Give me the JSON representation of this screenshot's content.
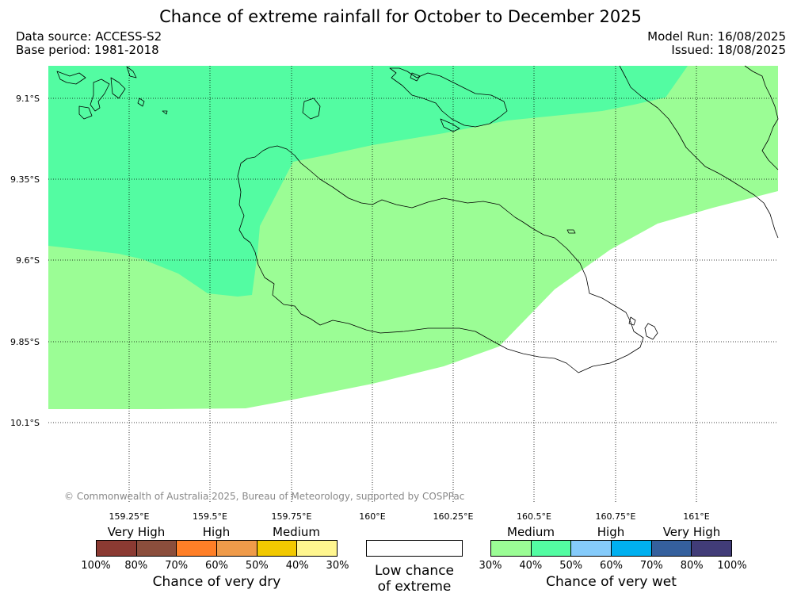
{
  "title": "Chance of extreme rainfall for October to December 2025",
  "data_source": "Data source: ACCESS-S2",
  "base_period": "Base period: 1981-2018",
  "model_run": "Model Run: 16/08/2025",
  "issued": "Issued: 18/08/2025",
  "latitude_labels": [
    "9.1°S",
    "9.35°S",
    "9.6°S",
    "9.85°S",
    "10.1°S"
  ],
  "longitude_labels": [
    "159.25°E",
    "159.5°E",
    "159.75°E",
    "160°E",
    "160.25°E",
    "160.5°E",
    "160.75°E",
    "161°E"
  ],
  "copyright": "© Commonwealth of Australia 2025, Bureau of Meteorology, supported by COSPPac",
  "dry_legend": {
    "categories": [
      "Very High",
      "High",
      "Medium"
    ],
    "colors": [
      "#8b3a32",
      "#8b4e3c",
      "#ff7f27",
      "#ef9b4a",
      "#f2c900",
      "#fff68f"
    ],
    "ticks": [
      "100%",
      "80%",
      "70%",
      "60%",
      "50%",
      "40%",
      "30%"
    ],
    "caption": "Chance of very dry"
  },
  "low_legend": {
    "line1": "Low chance",
    "line2": "of extreme"
  },
  "wet_legend": {
    "categories": [
      "Medium",
      "High",
      "Very High"
    ],
    "colors": [
      "#9bfd95",
      "#53fca2",
      "#85cbfb",
      "#00b0f0",
      "#35609d",
      "#413c78"
    ],
    "ticks": [
      "30%",
      "40%",
      "50%",
      "60%",
      "70%",
      "80%",
      "100%"
    ],
    "caption": "Chance of very wet"
  },
  "map_colors": {
    "wet_medium_light": "#9bfd95",
    "wet_medium": "#53fca2",
    "low": "#ffffff"
  }
}
